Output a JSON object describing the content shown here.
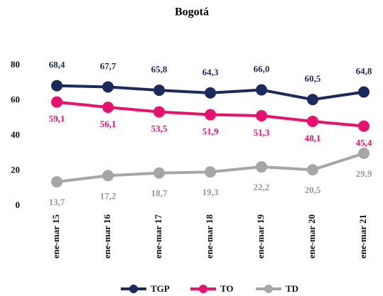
{
  "chart_data": {
    "type": "line",
    "title": "Bogotá",
    "categories": [
      "ene-mar 15",
      "ene-mar 16",
      "ene-mar 17",
      "ene-mar 18",
      "ene-mar 19",
      "ene-mar 20",
      "ene-mar 21"
    ],
    "series": [
      {
        "name": "TGP",
        "color": "#1b2a5c",
        "values": [
          68.4,
          67.7,
          65.8,
          64.3,
          66.0,
          60.5,
          64.8
        ],
        "value_labels": [
          "68,4",
          "67,7",
          "65,8",
          "64,3",
          "66,0",
          "60,5",
          "64,8"
        ]
      },
      {
        "name": "TO",
        "color": "#e8126e",
        "values": [
          59.1,
          56.1,
          53.5,
          51.9,
          51.3,
          48.1,
          45.4
        ],
        "value_labels": [
          "59,1",
          "56,1",
          "53,5",
          "51,9",
          "51,3",
          "48,1",
          "45,4"
        ]
      },
      {
        "name": "TD",
        "color": "#a6a6a6",
        "values": [
          13.7,
          17.2,
          18.7,
          19.3,
          22.2,
          20.5,
          29.9
        ],
        "value_labels": [
          "13,7",
          "17,2",
          "18,7",
          "19,3",
          "22,2",
          "20,5",
          "29,9"
        ]
      }
    ],
    "ylim": [
      0,
      80
    ],
    "yticks": [
      0,
      20,
      40,
      60,
      80
    ],
    "grid": false,
    "legend": "bottom"
  }
}
